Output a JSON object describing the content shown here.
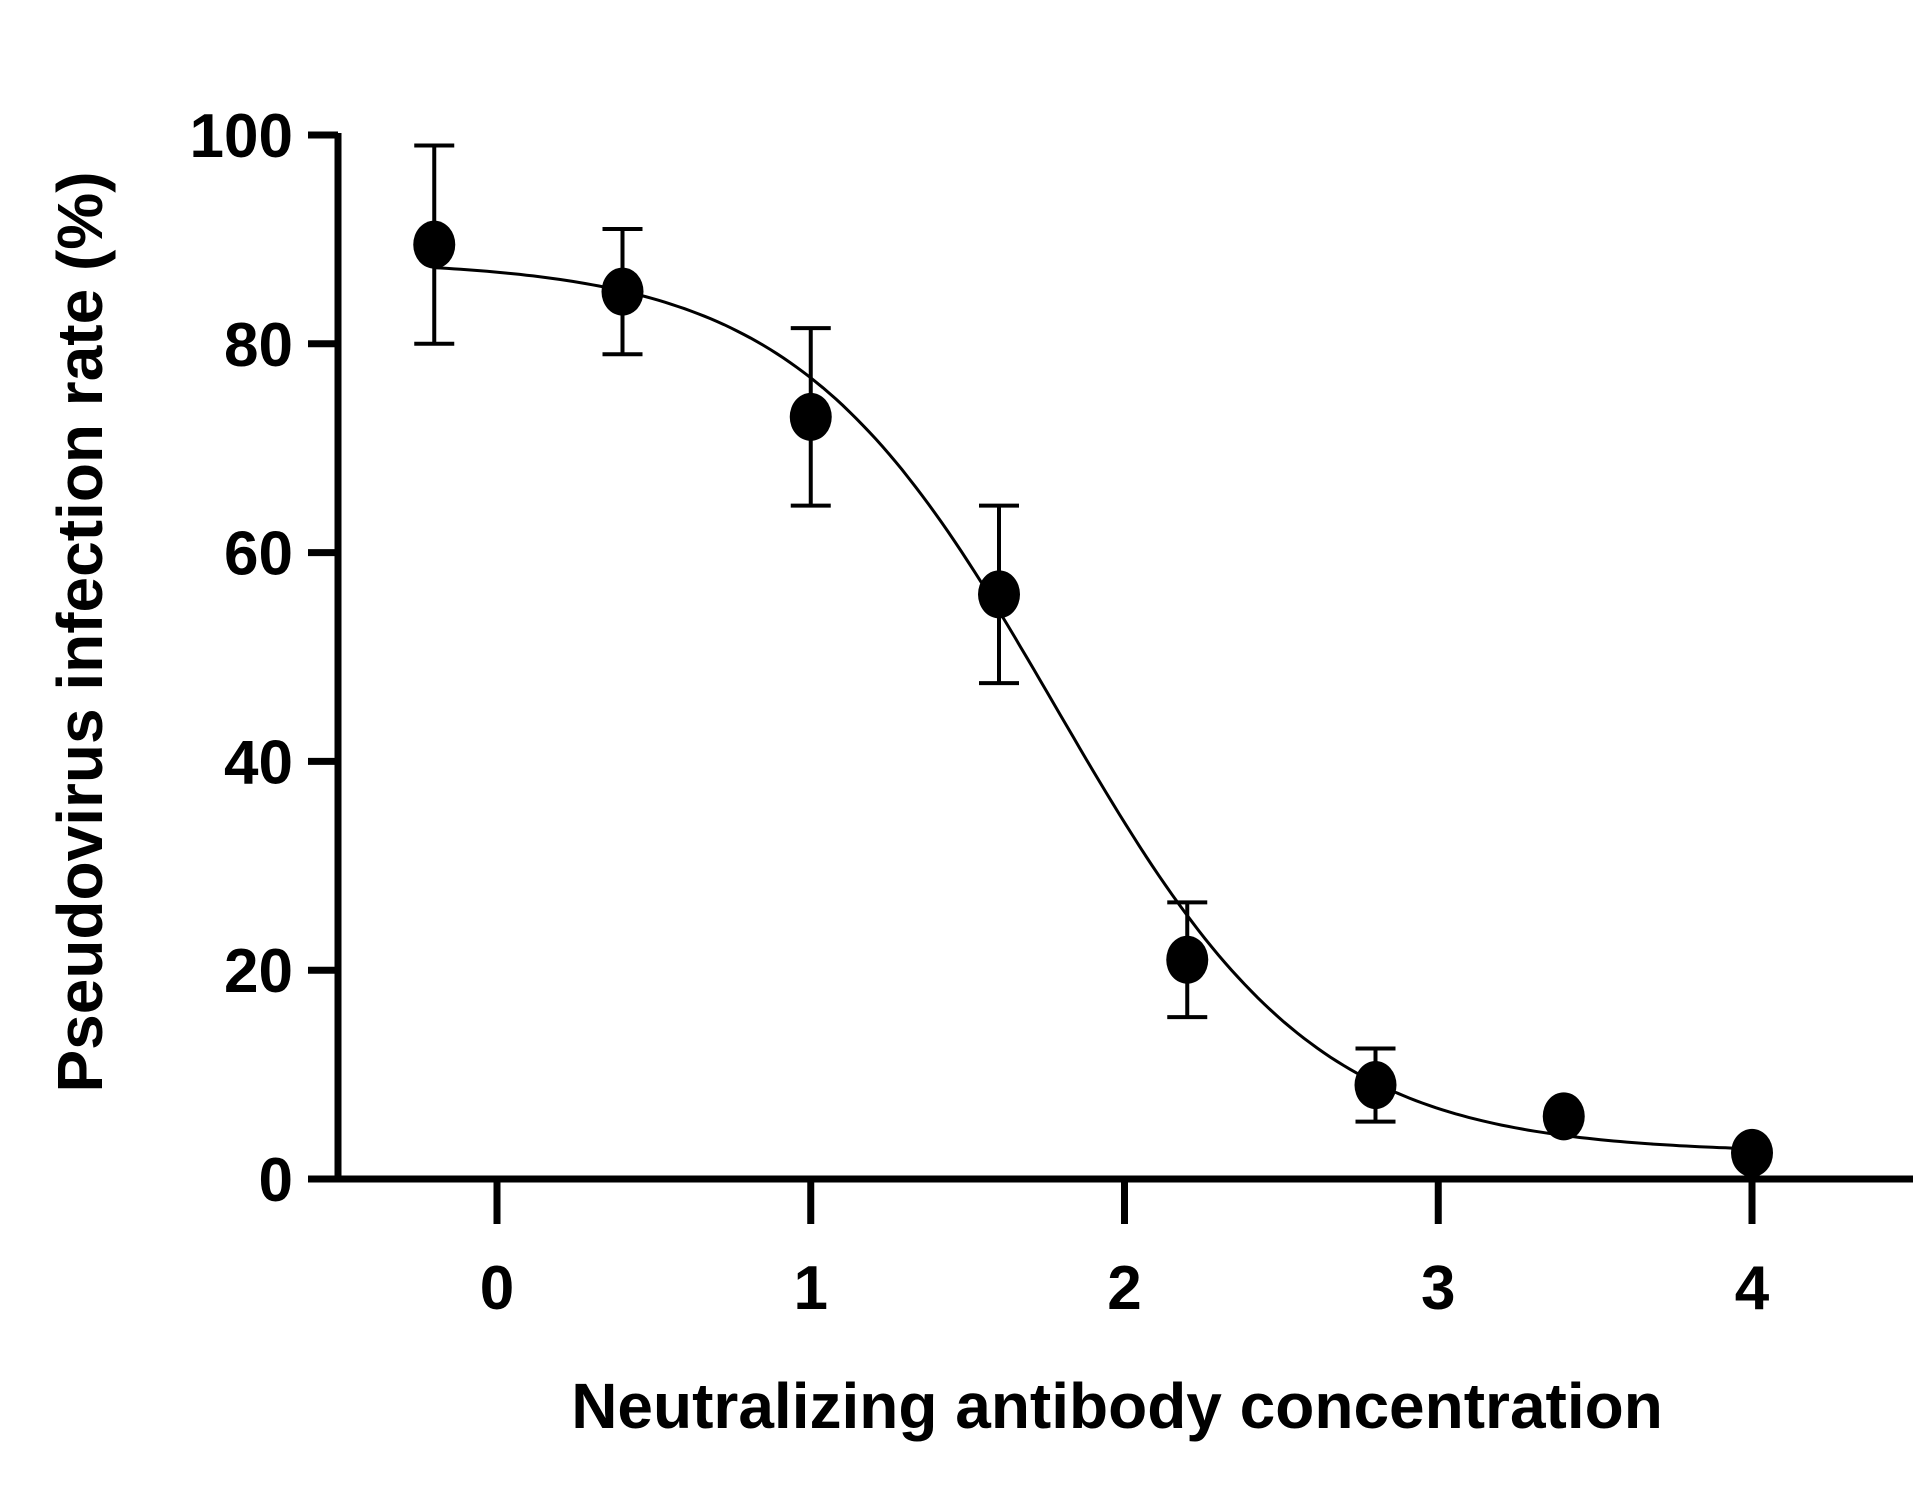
{
  "chart_data": {
    "type": "scatter",
    "title": "",
    "xlabel": "Neutralizing antibody concentration",
    "ylabel": "Pseudovirus infection rate (%)",
    "xlim": [
      -0.4,
      4.6
    ],
    "ylim": [
      0,
      100
    ],
    "xticks": [
      0,
      1,
      2,
      3,
      4
    ],
    "yticks": [
      0,
      20,
      40,
      60,
      80,
      100
    ],
    "grid": false,
    "legend": "none",
    "series": [
      {
        "name": "Pseudovirus infection rate",
        "x": [
          -0.2,
          0.4,
          1.0,
          1.6,
          2.2,
          2.8,
          3.4,
          4.0
        ],
        "y": [
          89.5,
          85,
          73,
          56,
          21,
          9,
          6,
          2.5
        ],
        "error": [
          9.5,
          6,
          8.5,
          8.5,
          5.5,
          3.5,
          0,
          0
        ]
      }
    ],
    "fit": {
      "model": "4PL",
      "top": 88,
      "bottom": 2.5,
      "logIC50": 1.78,
      "hill": 1.05
    },
    "color": "#000000"
  }
}
